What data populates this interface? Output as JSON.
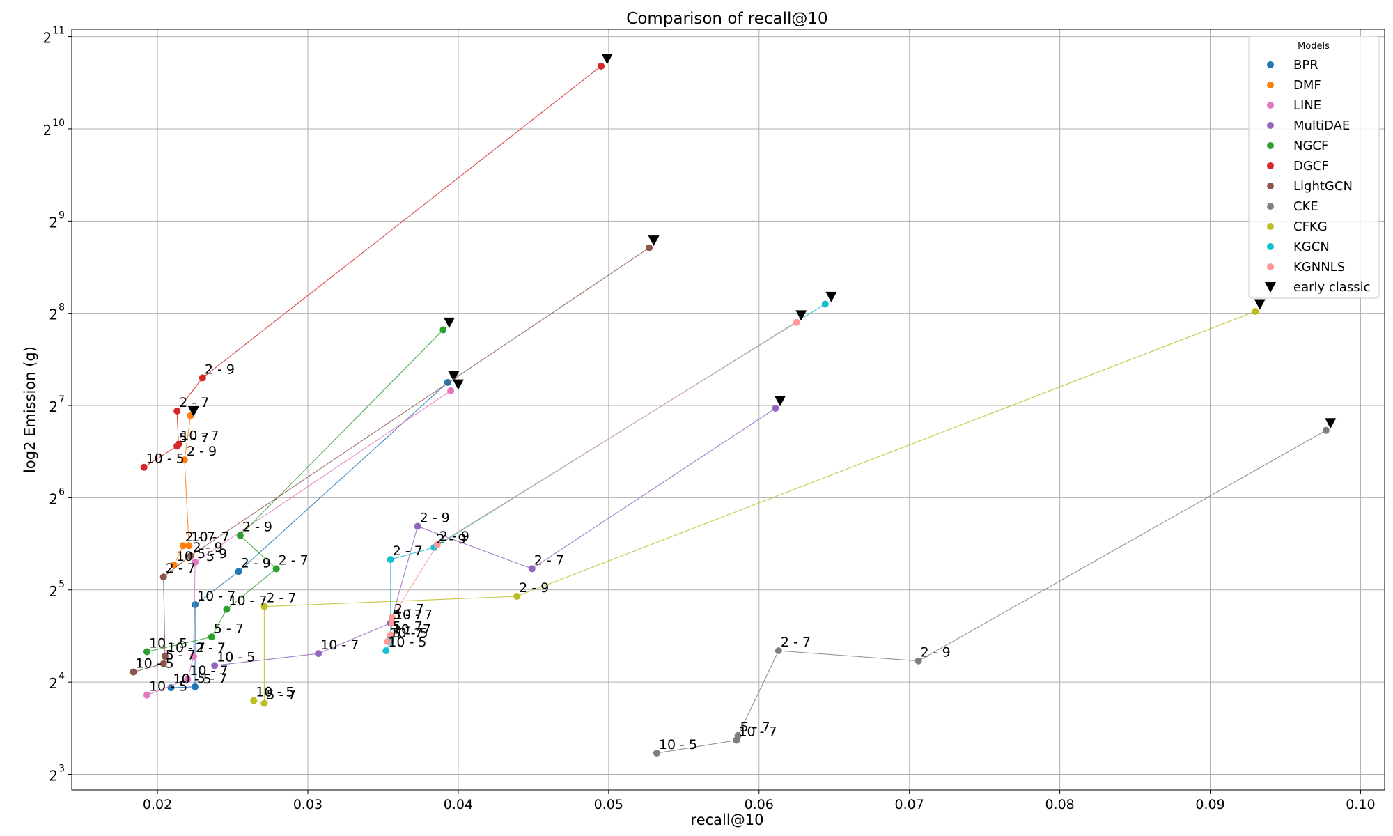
{
  "chart_data": {
    "type": "scatter",
    "title": "Comparison of recall@10",
    "xlabel": "recall@10",
    "ylabel": "log2 Emission (g)",
    "xlim": [
      0.0143,
      0.1016
    ],
    "ylim": [
      2.83,
      11.08
    ],
    "x_ticks": [
      {
        "value": 0.02,
        "label": "0.02"
      },
      {
        "value": 0.03,
        "label": "0.03"
      },
      {
        "value": 0.04,
        "label": "0.04"
      },
      {
        "value": 0.05,
        "label": "0.05"
      },
      {
        "value": 0.06,
        "label": "0.06"
      },
      {
        "value": 0.07,
        "label": "0.07"
      },
      {
        "value": 0.08,
        "label": "0.08"
      },
      {
        "value": 0.09,
        "label": "0.09"
      },
      {
        "value": 0.1,
        "label": "0.10"
      }
    ],
    "y_ticks": [
      {
        "value": 3,
        "base": "2",
        "exp": "3"
      },
      {
        "value": 4,
        "base": "2",
        "exp": "4"
      },
      {
        "value": 5,
        "base": "2",
        "exp": "5"
      },
      {
        "value": 6,
        "base": "2",
        "exp": "6"
      },
      {
        "value": 7,
        "base": "2",
        "exp": "7"
      },
      {
        "value": 8,
        "base": "2",
        "exp": "8"
      },
      {
        "value": 9,
        "base": "2",
        "exp": "9"
      },
      {
        "value": 10,
        "base": "2",
        "exp": "10"
      },
      {
        "value": 11,
        "base": "2",
        "exp": "11"
      }
    ],
    "grid": true,
    "legend": {
      "title": "Models",
      "position": "top-right",
      "early_classic_label": "early classic"
    },
    "series": [
      {
        "name": "BPR",
        "color": "#1f77b4",
        "points": [
          {
            "x": 0.0209,
            "y": 3.94,
            "label": "10 - 5"
          },
          {
            "x": 0.0225,
            "y": 3.95,
            "label": "5 - 7"
          },
          {
            "x": 0.0225,
            "y": 4.84,
            "label": "10 - 7"
          },
          {
            "x": 0.0254,
            "y": 5.2,
            "label": "2 - 9"
          },
          {
            "x": 0.0393,
            "y": 7.25,
            "label": ""
          }
        ],
        "early": {
          "x": 0.0397,
          "y": 7.32
        }
      },
      {
        "name": "DMF",
        "color": "#ff7f0e",
        "points": [
          {
            "x": 0.0211,
            "y": 5.27,
            "label": "10 - 5"
          },
          {
            "x": 0.0217,
            "y": 5.48,
            "label": "2 - 7"
          },
          {
            "x": 0.0221,
            "y": 5.48,
            "label": "10 - 7"
          },
          {
            "x": 0.0218,
            "y": 6.41,
            "label": "2 - 9"
          },
          {
            "x": 0.0222,
            "y": 6.89,
            "label": ""
          }
        ],
        "early": {
          "x": 0.0224,
          "y": 6.94
        }
      },
      {
        "name": "LINE",
        "color": "#e377c2",
        "points": [
          {
            "x": 0.0193,
            "y": 3.86,
            "label": "10 - 5"
          },
          {
            "x": 0.022,
            "y": 4.03,
            "label": "10 - 7"
          },
          {
            "x": 0.0224,
            "y": 4.28,
            "label": "2 - 7"
          },
          {
            "x": 0.0225,
            "y": 5.3,
            "label": "5 - 9"
          },
          {
            "x": 0.0395,
            "y": 7.16,
            "label": ""
          }
        ],
        "early": {
          "x": 0.04,
          "y": 7.23
        }
      },
      {
        "name": "MultiDAE",
        "color": "#9467bd",
        "points": [
          {
            "x": 0.0238,
            "y": 4.18,
            "label": "10 - 5"
          },
          {
            "x": 0.0307,
            "y": 4.31,
            "label": "10 - 7"
          },
          {
            "x": 0.0355,
            "y": 4.64,
            "label": "5 - 7"
          },
          {
            "x": 0.0373,
            "y": 5.69,
            "label": "2 - 9"
          },
          {
            "x": 0.0449,
            "y": 5.23,
            "label": "2 - 7"
          },
          {
            "x": 0.0611,
            "y": 6.97,
            "label": ""
          }
        ],
        "early": {
          "x": 0.0614,
          "y": 7.05
        }
      },
      {
        "name": "NGCF",
        "color": "#2ca02c",
        "points": [
          {
            "x": 0.0193,
            "y": 4.33,
            "label": "10 - 5"
          },
          {
            "x": 0.0236,
            "y": 4.49,
            "label": "5 - 7"
          },
          {
            "x": 0.0246,
            "y": 4.79,
            "label": "10 - 7"
          },
          {
            "x": 0.0279,
            "y": 5.23,
            "label": "2 - 7"
          },
          {
            "x": 0.0255,
            "y": 5.59,
            "label": "2 - 9"
          },
          {
            "x": 0.039,
            "y": 7.82,
            "label": ""
          }
        ],
        "early": {
          "x": 0.0394,
          "y": 7.9
        }
      },
      {
        "name": "DGCF",
        "color": "#d62728",
        "points": [
          {
            "x": 0.0191,
            "y": 6.33,
            "label": "10 - 5"
          },
          {
            "x": 0.0213,
            "y": 6.56,
            "label": "5 - 7"
          },
          {
            "x": 0.0214,
            "y": 6.58,
            "label": "10 - 7"
          },
          {
            "x": 0.0213,
            "y": 6.94,
            "label": "2 - 7"
          },
          {
            "x": 0.023,
            "y": 7.3,
            "label": "2 - 9"
          },
          {
            "x": 0.0495,
            "y": 10.68,
            "label": ""
          }
        ],
        "early": {
          "x": 0.0499,
          "y": 10.76
        }
      },
      {
        "name": "LightGCN",
        "color": "#8c564b",
        "points": [
          {
            "x": 0.0184,
            "y": 4.11,
            "label": "10 - 5"
          },
          {
            "x": 0.0204,
            "y": 4.2,
            "label": "5 - 7"
          },
          {
            "x": 0.0205,
            "y": 4.28,
            "label": "10 - 7"
          },
          {
            "x": 0.0204,
            "y": 5.14,
            "label": "2 - 7"
          },
          {
            "x": 0.0222,
            "y": 5.37,
            "label": "2 - 9"
          },
          {
            "x": 0.0527,
            "y": 8.71,
            "label": ""
          }
        ],
        "early": {
          "x": 0.053,
          "y": 8.79
        }
      },
      {
        "name": "CKE",
        "color": "#7f7f7f",
        "points": [
          {
            "x": 0.0532,
            "y": 3.23,
            "label": "10 - 5"
          },
          {
            "x": 0.0585,
            "y": 3.37,
            "label": "10 - 7"
          },
          {
            "x": 0.0586,
            "y": 3.42,
            "label": "5 - 7"
          },
          {
            "x": 0.0613,
            "y": 4.34,
            "label": "2 - 7"
          },
          {
            "x": 0.0706,
            "y": 4.23,
            "label": "2 - 9"
          },
          {
            "x": 0.0977,
            "y": 6.73,
            "label": ""
          }
        ],
        "early": {
          "x": 0.098,
          "y": 6.81
        }
      },
      {
        "name": "CFKG",
        "color": "#bcbd22",
        "points": [
          {
            "x": 0.0264,
            "y": 3.8,
            "label": "10 - 5"
          },
          {
            "x": 0.0271,
            "y": 3.77,
            "label": "5 - 7"
          },
          {
            "x": 0.0271,
            "y": 4.82,
            "label": "2 - 7"
          },
          {
            "x": 0.0439,
            "y": 4.93,
            "label": "2 - 9"
          },
          {
            "x": 0.093,
            "y": 8.02,
            "label": ""
          }
        ],
        "early": {
          "x": 0.0933,
          "y": 8.1
        }
      },
      {
        "name": "KGCN",
        "color": "#17becf",
        "points": [
          {
            "x": 0.0352,
            "y": 4.34,
            "label": "10 - 5"
          },
          {
            "x": 0.0355,
            "y": 4.44,
            "label": "5 - 7"
          },
          {
            "x": 0.0355,
            "y": 4.48,
            "label": "10 - 7"
          },
          {
            "x": 0.0355,
            "y": 5.33,
            "label": "2 - 7"
          },
          {
            "x": 0.0384,
            "y": 5.46,
            "label": "2 - 9"
          },
          {
            "x": 0.0644,
            "y": 8.1,
            "label": ""
          }
        ],
        "early": {
          "x": 0.0648,
          "y": 8.18
        }
      },
      {
        "name": "KGNNLS",
        "color": "#ff9896",
        "points": [
          {
            "x": 0.0353,
            "y": 4.44,
            "label": "10 - 5"
          },
          {
            "x": 0.0355,
            "y": 4.51,
            "label": "5 - 7"
          },
          {
            "x": 0.0356,
            "y": 4.64,
            "label": "10 - 7"
          },
          {
            "x": 0.0356,
            "y": 4.7,
            "label": "2 - 7"
          },
          {
            "x": 0.0386,
            "y": 5.49,
            "label": "2 - 9"
          },
          {
            "x": 0.0625,
            "y": 7.9,
            "label": ""
          }
        ],
        "early": {
          "x": 0.0628,
          "y": 7.98
        }
      }
    ]
  }
}
